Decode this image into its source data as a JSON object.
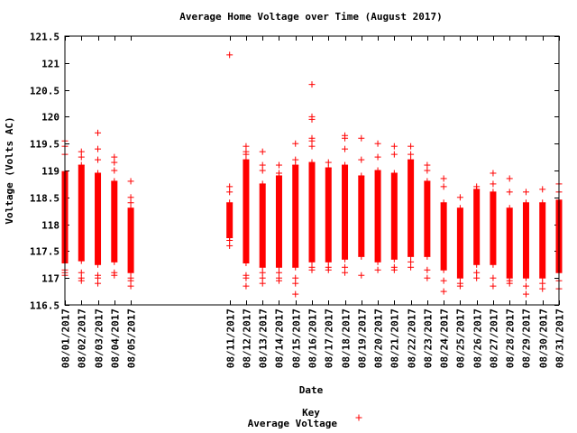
{
  "chart_data": {
    "type": "scatter",
    "title": "Average Home Voltage over Time (August 2017)",
    "xlabel": "Date",
    "ylabel": "Voltage (Volts AC)",
    "ylim": [
      116.5,
      121.5
    ],
    "yticks": [
      "116.5",
      "117",
      "117.5",
      "118",
      "118.5",
      "119",
      "119.5",
      "120",
      "120.5",
      "121",
      "121.5"
    ],
    "legend_title": "Key",
    "legend_placement": "bottom-center",
    "marker": "+",
    "color": "#ff0000",
    "series": [
      {
        "name": "Average Voltage",
        "days": [
          {
            "date": "08/01/2017",
            "day": 1,
            "band": [
              117.28,
              118.98
            ],
            "outliers": [
              119.55,
              119.45,
              119.3,
              117.05,
              117.1,
              117.15
            ]
          },
          {
            "date": "08/02/2017",
            "day": 2,
            "band": [
              117.32,
              119.1
            ],
            "outliers": [
              119.35,
              119.25,
              117.0,
              116.95,
              117.1
            ]
          },
          {
            "date": "08/03/2017",
            "day": 3,
            "band": [
              117.25,
              118.95
            ],
            "outliers": [
              119.7,
              119.4,
              119.2,
              116.9,
              117.0,
              117.05
            ]
          },
          {
            "date": "08/04/2017",
            "day": 4,
            "band": [
              117.3,
              118.8
            ],
            "outliers": [
              119.25,
              119.15,
              119.0,
              117.05,
              117.1
            ]
          },
          {
            "date": "08/05/2017",
            "day": 5,
            "band": [
              117.1,
              118.3
            ],
            "outliers": [
              118.8,
              118.5,
              118.4,
              116.85,
              116.95,
              117.0
            ]
          },
          {
            "date": "08/11/2017",
            "day": 11,
            "band": [
              117.75,
              118.4
            ],
            "outliers": [
              121.15,
              118.7,
              118.6,
              117.6,
              117.7
            ]
          },
          {
            "date": "08/12/2017",
            "day": 12,
            "band": [
              117.28,
              119.2
            ],
            "outliers": [
              119.45,
              119.35,
              119.3,
              116.85,
              117.0,
              117.05
            ]
          },
          {
            "date": "08/13/2017",
            "day": 13,
            "band": [
              117.2,
              118.75
            ],
            "outliers": [
              119.35,
              119.1,
              119.0,
              116.9,
              117.0,
              117.1
            ]
          },
          {
            "date": "08/14/2017",
            "day": 14,
            "band": [
              117.2,
              118.9
            ],
            "outliers": [
              119.1,
              118.95,
              116.95,
              117.0,
              117.1
            ]
          },
          {
            "date": "08/15/2017",
            "day": 15,
            "band": [
              117.2,
              119.1
            ],
            "outliers": [
              119.5,
              119.2,
              116.7,
              116.9,
              117.0
            ]
          },
          {
            "date": "08/16/2017",
            "day": 16,
            "band": [
              117.3,
              119.15
            ],
            "outliers": [
              120.6,
              120.0,
              119.95,
              119.6,
              119.55,
              119.45,
              117.15,
              117.2
            ]
          },
          {
            "date": "08/17/2017",
            "day": 17,
            "band": [
              117.3,
              119.05
            ],
            "outliers": [
              119.15,
              117.2,
              117.15
            ]
          },
          {
            "date": "08/18/2017",
            "day": 18,
            "band": [
              117.35,
              119.1
            ],
            "outliers": [
              119.65,
              119.6,
              119.4,
              117.1,
              117.2
            ]
          },
          {
            "date": "08/19/2017",
            "day": 19,
            "band": [
              117.4,
              118.9
            ],
            "outliers": [
              119.6,
              119.2,
              117.05
            ]
          },
          {
            "date": "08/20/2017",
            "day": 20,
            "band": [
              117.3,
              119.0
            ],
            "outliers": [
              119.5,
              119.25,
              117.15
            ]
          },
          {
            "date": "08/21/2017",
            "day": 21,
            "band": [
              117.35,
              118.95
            ],
            "outliers": [
              119.45,
              119.3,
              117.15,
              117.2
            ]
          },
          {
            "date": "08/22/2017",
            "day": 22,
            "band": [
              117.4,
              119.2
            ],
            "outliers": [
              119.45,
              119.3,
              117.2,
              117.3
            ]
          },
          {
            "date": "08/23/2017",
            "day": 23,
            "band": [
              117.4,
              118.8
            ],
            "outliers": [
              119.1,
              119.0,
              117.0,
              117.15
            ]
          },
          {
            "date": "08/24/2017",
            "day": 24,
            "band": [
              117.15,
              118.4
            ],
            "outliers": [
              118.85,
              118.7,
              116.75,
              116.95
            ]
          },
          {
            "date": "08/25/2017",
            "day": 25,
            "band": [
              117.0,
              118.3
            ],
            "outliers": [
              118.5,
              116.85,
              116.9
            ]
          },
          {
            "date": "08/26/2017",
            "day": 26,
            "band": [
              117.25,
              118.65
            ],
            "outliers": [
              118.7,
              117.0,
              117.1
            ]
          },
          {
            "date": "08/27/2017",
            "day": 27,
            "band": [
              117.25,
              118.6
            ],
            "outliers": [
              118.95,
              118.75,
              116.85,
              117.0
            ]
          },
          {
            "date": "08/28/2017",
            "day": 28,
            "band": [
              117.0,
              118.3
            ],
            "outliers": [
              118.85,
              118.6,
              116.9,
              116.95
            ]
          },
          {
            "date": "08/29/2017",
            "day": 29,
            "band": [
              117.0,
              118.4
            ],
            "outliers": [
              118.6,
              116.7,
              116.85
            ]
          },
          {
            "date": "08/30/2017",
            "day": 30,
            "band": [
              117.0,
              118.4
            ],
            "outliers": [
              118.65,
              116.8,
              116.9
            ]
          },
          {
            "date": "08/31/2017",
            "day": 31,
            "band": [
              117.1,
              118.45
            ],
            "outliers": [
              118.75,
              118.6,
              116.8,
              116.95
            ]
          }
        ]
      }
    ]
  }
}
